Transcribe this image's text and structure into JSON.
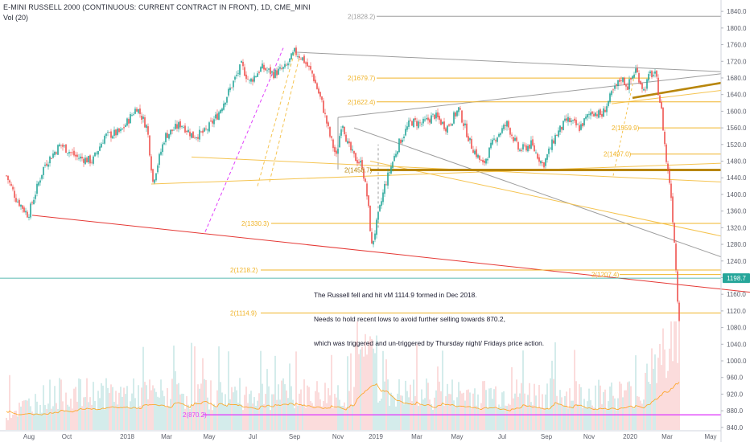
{
  "chart_data": {
    "type": "candlestick",
    "title": "E-MINI RUSSELL 2000 (CONTINUOUS: CURRENT CONTRACT IN FRONT), 1D, CME_MINI",
    "volume_label": "Vol (20)",
    "x_tick_labels": [
      "Aug",
      "Oct",
      "2018",
      "Mar",
      "May",
      "Jul",
      "Sep",
      "Nov",
      "2019",
      "Mar",
      "May",
      "Jul",
      "Sep",
      "Nov",
      "2020",
      "Mar",
      "May"
    ],
    "y_axis": {
      "ticks": [
        840,
        880,
        920,
        960,
        1000,
        1040,
        1080,
        1120,
        1160,
        1200,
        1240,
        1280,
        1320,
        1360,
        1400,
        1440,
        1480,
        1520,
        1560,
        1600,
        1640,
        1680,
        1720,
        1760,
        1800,
        1840
      ],
      "range": [
        820,
        1860
      ],
      "tick_decimals": 1
    },
    "current_price": 1198.7,
    "current_price_label": "1198.7",
    "series_anchor_points": [
      [
        0,
        1410
      ],
      [
        8,
        1445
      ],
      [
        20,
        1390
      ],
      [
        35,
        1350
      ],
      [
        55,
        1470
      ],
      [
        75,
        1520
      ],
      [
        95,
        1490
      ],
      [
        115,
        1480
      ],
      [
        130,
        1540
      ],
      [
        150,
        1550
      ],
      [
        170,
        1610
      ],
      [
        183,
        1560
      ],
      [
        190,
        1430
      ],
      [
        205,
        1540
      ],
      [
        225,
        1570
      ],
      [
        240,
        1540
      ],
      [
        255,
        1550
      ],
      [
        270,
        1590
      ],
      [
        285,
        1650
      ],
      [
        300,
        1710
      ],
      [
        310,
        1670
      ],
      [
        325,
        1705
      ],
      [
        340,
        1690
      ],
      [
        355,
        1705
      ],
      [
        366,
        1742
      ],
      [
        375,
        1730
      ],
      [
        388,
        1690
      ],
      [
        400,
        1620
      ],
      [
        410,
        1540
      ],
      [
        418,
        1490
      ],
      [
        425,
        1580
      ],
      [
        432,
        1520
      ],
      [
        440,
        1490
      ],
      [
        450,
        1470
      ],
      [
        457,
        1385
      ],
      [
        462,
        1275
      ],
      [
        467,
        1320
      ],
      [
        478,
        1420
      ],
      [
        495,
        1520
      ],
      [
        510,
        1575
      ],
      [
        525,
        1570
      ],
      [
        540,
        1590
      ],
      [
        555,
        1560
      ],
      [
        570,
        1605
      ],
      [
        585,
        1520
      ],
      [
        600,
        1470
      ],
      [
        615,
        1535
      ],
      [
        630,
        1570
      ],
      [
        645,
        1505
      ],
      [
        660,
        1520
      ],
      [
        675,
        1470
      ],
      [
        690,
        1540
      ],
      [
        705,
        1580
      ],
      [
        720,
        1560
      ],
      [
        735,
        1600
      ],
      [
        748,
        1590
      ],
      [
        760,
        1640
      ],
      [
        772,
        1680
      ],
      [
        780,
        1660
      ],
      [
        790,
        1700
      ],
      [
        800,
        1650
      ],
      [
        808,
        1690
      ],
      [
        815,
        1685
      ],
      [
        822,
        1600
      ],
      [
        828,
        1480
      ],
      [
        833,
        1420
      ],
      [
        838,
        1290
      ],
      [
        842,
        1150
      ],
      [
        845,
        1085
      ]
    ],
    "horizontal_levels": [
      {
        "label": "2(1828.2)",
        "value": 1828.2,
        "color": "#9e9e9e"
      },
      {
        "label": "2(1679.7)",
        "value": 1679.7,
        "color": "#f0b429"
      },
      {
        "label": "2(1622.4)",
        "value": 1622.4,
        "color": "#f0b429"
      },
      {
        "label": "2(1559.9)",
        "value": 1559.9,
        "color": "#f0b429"
      },
      {
        "label": "2(1497.0)",
        "value": 1497.0,
        "color": "#f0b429"
      },
      {
        "label": "2(1458.7)",
        "value": 1458.7,
        "color": "#b8860b"
      },
      {
        "label": "2(1330.3)",
        "value": 1330.3,
        "color": "#f0b429"
      },
      {
        "label": "2(1218.2)",
        "value": 1218.2,
        "color": "#f0b429"
      },
      {
        "label": "2(1207.4)",
        "value": 1207.4,
        "color": "#f0b429"
      },
      {
        "label": "2(1114.9)",
        "value": 1114.9,
        "color": "#f0b429"
      },
      {
        "label": "2(870.2)",
        "value": 870.2,
        "color": "#e040fb"
      }
    ],
    "annotations": [
      "The Russell fell and hit vM 1114.9 formed in Dec 2018.",
      "Needs to hold recent lows to avoid further selling towards 870.2,",
      "which was triggered and un-triggered by Thursday night/ Fridays price action."
    ],
    "colors": {
      "up": "#26a69a",
      "down": "#ef5350",
      "level": "#f0b429",
      "magenta": "#e040fb",
      "red_trend": "#e53935",
      "gray_trend": "#9e9e9e",
      "dark_gold": "#b8860b",
      "price_badge": "#26a69a"
    }
  }
}
